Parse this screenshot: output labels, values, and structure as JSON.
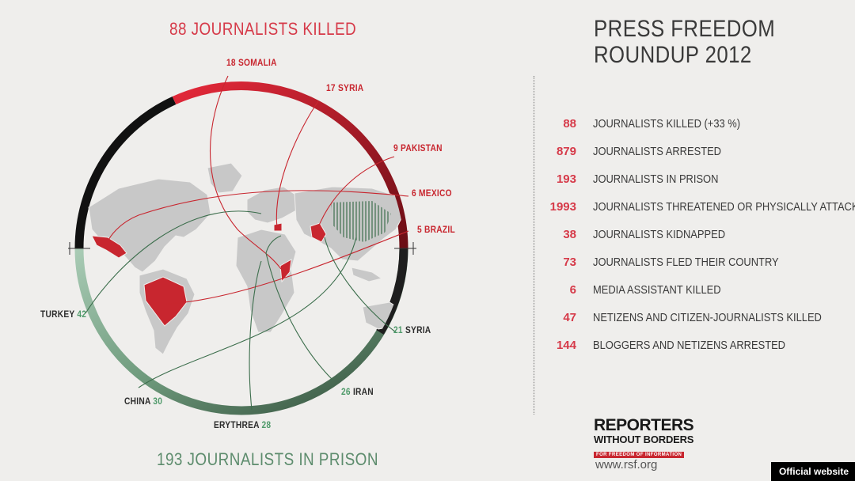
{
  "colors": {
    "red": "#c8262f",
    "green": "#4f9a6a",
    "dark": "#222222",
    "land": "#c8c8c8",
    "background": "#efeeec"
  },
  "map": {
    "killed_title": "88 JOURNALISTS KILLED",
    "prison_title": "193 JOURNALISTS IN PRISON",
    "killed_countries": [
      {
        "count": "18",
        "name": "SOMALIA"
      },
      {
        "count": "17",
        "name": "SYRIA"
      },
      {
        "count": "9",
        "name": "PAKISTAN"
      },
      {
        "count": "6",
        "name": "MEXICO"
      },
      {
        "count": "5",
        "name": "BRAZIL"
      }
    ],
    "prison_countries": [
      {
        "name": "TURKEY",
        "count": "42"
      },
      {
        "name": "CHINA",
        "count": "30"
      },
      {
        "name": "ERYTHREA",
        "count": "28"
      },
      {
        "name": "IRAN",
        "count": "26"
      },
      {
        "name": "SYRIA",
        "count": "21"
      }
    ]
  },
  "header": {
    "title_line1": "PRESS FREEDOM",
    "title_line2": "ROUNDUP 2012"
  },
  "stats": [
    {
      "value": "88",
      "label": "JOURNALISTS KILLED (+33 %)"
    },
    {
      "value": "879",
      "label": "JOURNALISTS ARRESTED"
    },
    {
      "value": "193",
      "label": "JOURNALISTS IN PRISON"
    },
    {
      "value": "1993",
      "label": "JOURNALISTS THREATENED OR PHYSICALLY ATTACKED"
    },
    {
      "value": "38",
      "label": "JOURNALISTS KIDNAPPED"
    },
    {
      "value": "73",
      "label": "JOURNALISTS FLED THEIR COUNTRY"
    },
    {
      "value": "6",
      "label": "MEDIA ASSISTANT KILLED"
    },
    {
      "value": "47",
      "label": "NETIZENS AND CITIZEN-JOURNALISTS KILLED"
    },
    {
      "value": "144",
      "label": "BLOGGERS AND NETIZENS ARRESTED"
    }
  ],
  "logo": {
    "line1": "REPORTERS",
    "line2": "WITHOUT BORDERS",
    "tagline": "FOR FREEDOM OF INFORMATION"
  },
  "url": "www.rsf.org",
  "badge": "Official website"
}
